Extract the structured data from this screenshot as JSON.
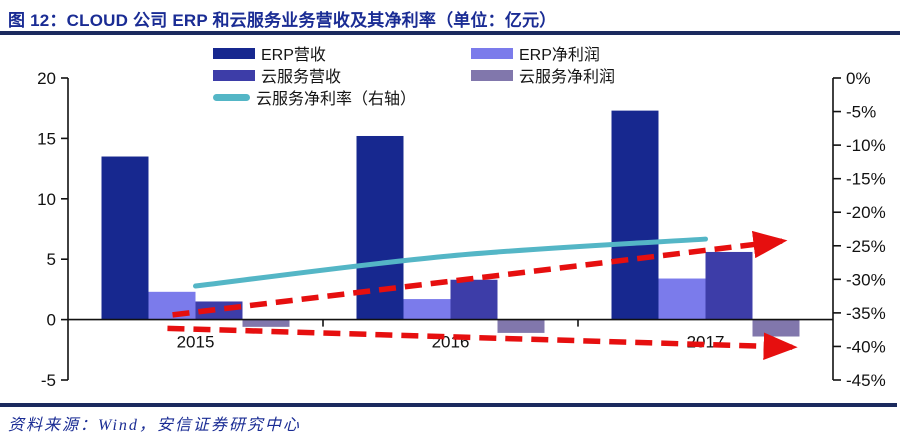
{
  "title": "图 12：CLOUD 公司 ERP 和云服务业务营收及其净利率（单位：亿元）",
  "source": "资料来源：Wind，安信证券研究中心",
  "colors": {
    "title_text": "#1a2c94",
    "rule": "#1b2a5e",
    "erp_revenue": "#17288f",
    "erp_profit": "#7b7beb",
    "cloud_revenue": "#3d3da8",
    "cloud_profit": "#8177ac",
    "cloud_margin_line": "#54b6c6",
    "trend_arrow": "#e60f0f",
    "axis": "#111111"
  },
  "legend": [
    {
      "label": "ERP营收",
      "color": "#17288f",
      "shape": "bar"
    },
    {
      "label": "ERP净利润",
      "color": "#7b7beb",
      "shape": "bar"
    },
    {
      "label": "云服务营收",
      "color": "#3d3da8",
      "shape": "bar"
    },
    {
      "label": "云服务净利润",
      "color": "#8177ac",
      "shape": "bar"
    },
    {
      "label": "云服务净利率（右轴）",
      "color": "#54b6c6",
      "shape": "line"
    }
  ],
  "chart_data": {
    "type": "bar",
    "subtype": "grouped-bar-with-line",
    "categories": [
      "2015",
      "2016",
      "2017"
    ],
    "series": [
      {
        "name": "ERP营收",
        "type": "bar",
        "axis": "left",
        "color": "#17288f",
        "values": [
          13.5,
          15.2,
          17.3
        ]
      },
      {
        "name": "ERP净利润",
        "type": "bar",
        "axis": "left",
        "color": "#7b7beb",
        "values": [
          2.3,
          1.7,
          3.4
        ]
      },
      {
        "name": "云服务营收",
        "type": "bar",
        "axis": "left",
        "color": "#3d3da8",
        "values": [
          1.5,
          3.3,
          5.6
        ]
      },
      {
        "name": "云服务净利润",
        "type": "bar",
        "axis": "left",
        "color": "#8177ac",
        "values": [
          -0.6,
          -1.1,
          -1.4
        ]
      },
      {
        "name": "云服务净利率（右轴）",
        "type": "line",
        "axis": "right",
        "color": "#54b6c6",
        "values": [
          -31,
          -26.5,
          -24
        ]
      }
    ],
    "left_axis": {
      "min": -5,
      "max": 20,
      "ticks": [
        20,
        15,
        10,
        5,
        0,
        -5
      ]
    },
    "right_axis": {
      "min": -45,
      "max": 0,
      "ticks": [
        0,
        -5,
        -10,
        -15,
        -20,
        -25,
        -30,
        -35,
        -40,
        -45
      ],
      "tick_labels": [
        "0%",
        "-5%",
        "-10%",
        "-15%",
        "-20%",
        "-25%",
        "-30%",
        "-35%",
        "-40%",
        "-45%"
      ]
    },
    "grid": false,
    "legend_position": "top",
    "annotations": [
      {
        "type": "arrow",
        "style": "dashed",
        "color": "#e60f0f",
        "x1_cat": 0.41,
        "y1_pct": -35.3,
        "x2_cat": 2.8,
        "y2_pct": -24.3
      },
      {
        "type": "arrow",
        "style": "dashed",
        "color": "#e60f0f",
        "x1_cat": 0.39,
        "y1_pct": -37.3,
        "x2_cat": 2.84,
        "y2_pct": -40.1
      }
    ]
  }
}
